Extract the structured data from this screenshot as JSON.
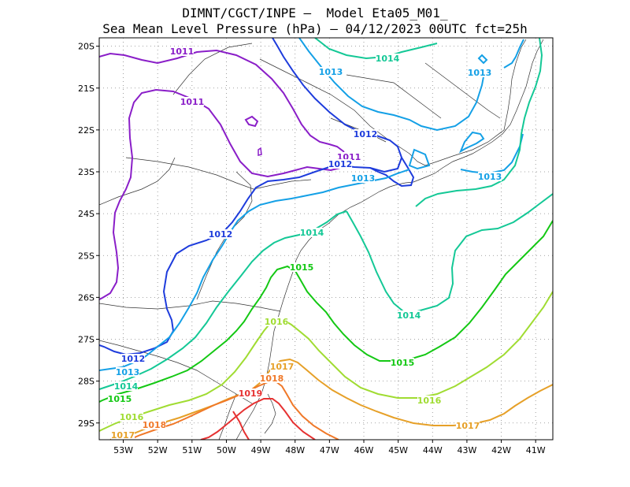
{
  "title": {
    "line1": "DIMNT/CGCT/INPE —  Model Eta05_M01_",
    "line2": "Sea Mean Level Pressure (hPa) — 04/12/2023 00UTC fct=25h"
  },
  "chart_data": {
    "type": "contour-map",
    "variable": "Sea Mean Level Pressure",
    "units": "hPa",
    "lon_range": [
      -53.7,
      -40.5
    ],
    "lat_range": [
      -29.4,
      -19.8
    ],
    "x_ticks": [
      "53W",
      "52W",
      "51W",
      "50W",
      "49W",
      "48W",
      "47W",
      "46W",
      "45W",
      "44W",
      "43W",
      "42W",
      "41W"
    ],
    "y_ticks": [
      "20S",
      "21S",
      "22S",
      "23S",
      "24S",
      "25S",
      "26S",
      "27S",
      "28S",
      "29S"
    ],
    "levels": [
      {
        "value": 1011,
        "color": "#8a1ec8"
      },
      {
        "value": 1012,
        "color": "#1e3cdc"
      },
      {
        "value": 1013,
        "color": "#14a0e6"
      },
      {
        "value": 1014,
        "color": "#14c896"
      },
      {
        "value": 1015,
        "color": "#14c814"
      },
      {
        "value": 1016,
        "color": "#a0dc32"
      },
      {
        "value": 1017,
        "color": "#e6a028"
      },
      {
        "value": 1018,
        "color": "#f07828"
      },
      {
        "value": 1019,
        "color": "#e63232"
      }
    ]
  }
}
